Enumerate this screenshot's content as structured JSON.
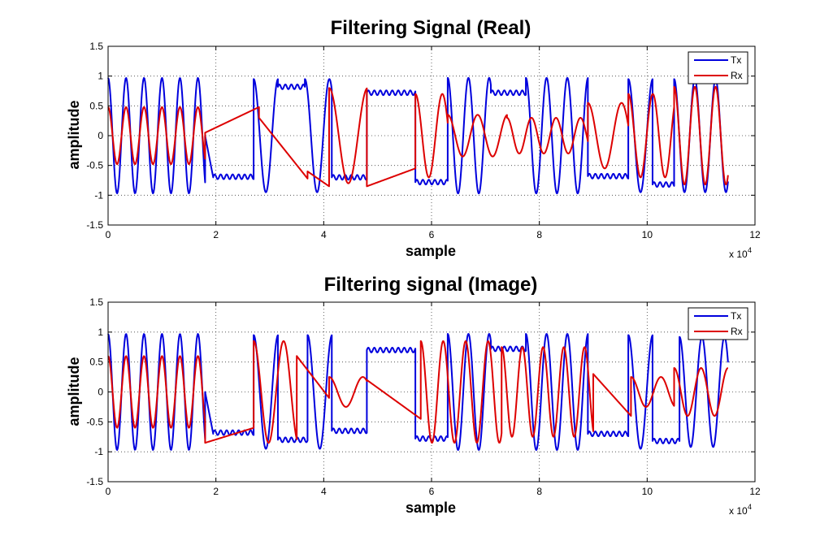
{
  "chart_data": [
    {
      "type": "line",
      "title": "Filtering Signal (Real)",
      "xlabel": "sample",
      "ylabel": "amplitude",
      "x_multiplier": "x 10",
      "x_multiplier_exp": "4",
      "xlim": [
        0,
        12
      ],
      "ylim": [
        -1.5,
        1.5
      ],
      "xticks": [
        0,
        2,
        4,
        6,
        8,
        10,
        12
      ],
      "xticklabels": [
        "0",
        "2",
        "4",
        "6",
        "8",
        "10",
        "12"
      ],
      "yticks": [
        1.5,
        1,
        0.5,
        0,
        -0.5,
        -1,
        -1.5
      ],
      "yticklabels": [
        "1.5",
        "1",
        "0.5",
        "0",
        "-0.5",
        "-1",
        "-1.5"
      ],
      "grid": true,
      "legend_position": "top-right",
      "series": [
        {
          "name": "Tx",
          "color": "#0000dd",
          "segments": [
            {
              "x0": 0,
              "x1": 1.8,
              "kind": "osc",
              "amp": 0.97,
              "freq": 3.0
            },
            {
              "x0": 1.8,
              "x1": 1.95,
              "kind": "ramp",
              "from": 0.0,
              "to": -0.7
            },
            {
              "x0": 1.95,
              "x1": 2.7,
              "kind": "flat",
              "level": -0.69
            },
            {
              "x0": 2.7,
              "x1": 3.15,
              "kind": "osc",
              "amp": 0.95,
              "freq": 2.2
            },
            {
              "x0": 3.15,
              "x1": 3.65,
              "kind": "flat",
              "level": 0.82
            },
            {
              "x0": 3.65,
              "x1": 4.15,
              "kind": "osc",
              "amp": 0.95,
              "freq": 2.2
            },
            {
              "x0": 4.15,
              "x1": 4.8,
              "kind": "flat",
              "level": -0.7
            },
            {
              "x0": 4.8,
              "x1": 5.7,
              "kind": "flat",
              "level": 0.72
            },
            {
              "x0": 5.7,
              "x1": 6.3,
              "kind": "flat",
              "level": -0.78
            },
            {
              "x0": 6.3,
              "x1": 7.1,
              "kind": "osc",
              "amp": 0.97,
              "freq": 2.6
            },
            {
              "x0": 7.1,
              "x1": 7.75,
              "kind": "flat",
              "level": 0.72
            },
            {
              "x0": 7.75,
              "x1": 8.9,
              "kind": "osc",
              "amp": 0.97,
              "freq": 2.6
            },
            {
              "x0": 8.9,
              "x1": 9.65,
              "kind": "flat",
              "level": -0.68
            },
            {
              "x0": 9.65,
              "x1": 10.1,
              "kind": "osc",
              "amp": 0.95,
              "freq": 2.2
            },
            {
              "x0": 10.1,
              "x1": 10.5,
              "kind": "flat",
              "level": -0.82
            },
            {
              "x0": 10.5,
              "x1": 11.5,
              "kind": "osc",
              "amp": 0.95,
              "freq": 2.6
            }
          ]
        },
        {
          "name": "Rx",
          "color": "#dd0000",
          "segments": [
            {
              "x0": 0,
              "x1": 1.8,
              "kind": "osc",
              "amp": 0.48,
              "freq": 3.0
            },
            {
              "x0": 1.8,
              "x1": 2.8,
              "kind": "ramp",
              "from": 0.05,
              "to": 0.48
            },
            {
              "x0": 2.8,
              "x1": 3.7,
              "kind": "ramp",
              "from": 0.3,
              "to": -0.72
            },
            {
              "x0": 3.7,
              "x1": 4.1,
              "kind": "ramp",
              "from": -0.6,
              "to": -0.85
            },
            {
              "x0": 4.1,
              "x1": 4.8,
              "kind": "osc",
              "amp": 0.8,
              "freq": 1.4
            },
            {
              "x0": 4.8,
              "x1": 5.7,
              "kind": "ramp",
              "from": -0.85,
              "to": -0.55
            },
            {
              "x0": 5.7,
              "x1": 6.3,
              "kind": "osc",
              "amp": 0.7,
              "freq": 2.0
            },
            {
              "x0": 6.3,
              "x1": 7.4,
              "kind": "osc",
              "amp": 0.35,
              "freq": 1.8
            },
            {
              "x0": 7.4,
              "x1": 8.9,
              "kind": "osc",
              "amp": 0.3,
              "freq": 2.2
            },
            {
              "x0": 8.9,
              "x1": 9.65,
              "kind": "osc",
              "amp": 0.55,
              "freq": 1.6
            },
            {
              "x0": 9.65,
              "x1": 10.5,
              "kind": "osc",
              "amp": 0.7,
              "freq": 2.2
            },
            {
              "x0": 10.5,
              "x1": 11.5,
              "kind": "osc",
              "amp": 0.82,
              "freq": 2.6
            }
          ]
        }
      ]
    },
    {
      "type": "line",
      "title": "Filtering signal (Image)",
      "xlabel": "sample",
      "ylabel": "amplitude",
      "x_multiplier": "x 10",
      "x_multiplier_exp": "4",
      "xlim": [
        0,
        12
      ],
      "ylim": [
        -1.5,
        1.5
      ],
      "xticks": [
        0,
        2,
        4,
        6,
        8,
        10,
        12
      ],
      "xticklabels": [
        "0",
        "2",
        "4",
        "6",
        "8",
        "10",
        "12"
      ],
      "yticks": [
        1.5,
        1,
        0.5,
        0,
        -0.5,
        -1,
        -1.5
      ],
      "yticklabels": [
        "1.5",
        "1",
        "0.5",
        "0",
        "-0.5",
        "-1",
        "-1.5"
      ],
      "grid": true,
      "legend_position": "top-right",
      "series": [
        {
          "name": "Tx",
          "color": "#0000dd",
          "segments": [
            {
              "x0": 0,
              "x1": 1.8,
              "kind": "osc",
              "amp": 0.97,
              "freq": 3.0
            },
            {
              "x0": 1.8,
              "x1": 1.95,
              "kind": "ramp",
              "from": 0.0,
              "to": -0.7
            },
            {
              "x0": 1.95,
              "x1": 2.7,
              "kind": "flat",
              "level": -0.68
            },
            {
              "x0": 2.7,
              "x1": 3.15,
              "kind": "osc",
              "amp": 0.95,
              "freq": 2.2
            },
            {
              "x0": 3.15,
              "x1": 3.7,
              "kind": "flat",
              "level": -0.8
            },
            {
              "x0": 3.7,
              "x1": 4.15,
              "kind": "osc",
              "amp": 0.95,
              "freq": 2.2
            },
            {
              "x0": 4.15,
              "x1": 4.8,
              "kind": "flat",
              "level": -0.65
            },
            {
              "x0": 4.8,
              "x1": 5.7,
              "kind": "flat",
              "level": 0.7
            },
            {
              "x0": 5.7,
              "x1": 6.3,
              "kind": "flat",
              "level": -0.78
            },
            {
              "x0": 6.3,
              "x1": 7.1,
              "kind": "osc",
              "amp": 0.97,
              "freq": 2.6
            },
            {
              "x0": 7.1,
              "x1": 7.75,
              "kind": "flat",
              "level": 0.72
            },
            {
              "x0": 7.75,
              "x1": 8.9,
              "kind": "osc",
              "amp": 0.97,
              "freq": 2.6
            },
            {
              "x0": 8.9,
              "x1": 9.65,
              "kind": "flat",
              "level": -0.7
            },
            {
              "x0": 9.65,
              "x1": 10.1,
              "kind": "osc",
              "amp": 0.95,
              "freq": 2.2
            },
            {
              "x0": 10.1,
              "x1": 10.6,
              "kind": "flat",
              "level": -0.82
            },
            {
              "x0": 10.6,
              "x1": 11.5,
              "kind": "osc",
              "amp": 0.92,
              "freq": 2.4
            }
          ]
        },
        {
          "name": "Rx",
          "color": "#dd0000",
          "segments": [
            {
              "x0": 0,
              "x1": 1.8,
              "kind": "osc",
              "amp": 0.6,
              "freq": 3.0
            },
            {
              "x0": 1.8,
              "x1": 2.7,
              "kind": "ramp",
              "from": -0.85,
              "to": -0.6
            },
            {
              "x0": 2.7,
              "x1": 3.5,
              "kind": "osc",
              "amp": 0.85,
              "freq": 1.8
            },
            {
              "x0": 3.5,
              "x1": 4.1,
              "kind": "ramp",
              "from": 0.6,
              "to": -0.1
            },
            {
              "x0": 4.1,
              "x1": 4.8,
              "kind": "osc",
              "amp": 0.25,
              "freq": 1.6
            },
            {
              "x0": 4.8,
              "x1": 5.8,
              "kind": "ramp",
              "from": 0.2,
              "to": -0.45
            },
            {
              "x0": 5.8,
              "x1": 7.3,
              "kind": "osc",
              "amp": 0.85,
              "freq": 2.4
            },
            {
              "x0": 7.3,
              "x1": 9.0,
              "kind": "osc",
              "amp": 0.75,
              "freq": 2.6
            },
            {
              "x0": 9.0,
              "x1": 9.7,
              "kind": "ramp",
              "from": 0.3,
              "to": -0.4
            },
            {
              "x0": 9.7,
              "x1": 10.5,
              "kind": "osc",
              "amp": 0.25,
              "freq": 1.8
            },
            {
              "x0": 10.5,
              "x1": 11.5,
              "kind": "osc",
              "amp": 0.4,
              "freq": 2.0
            }
          ]
        }
      ]
    }
  ]
}
